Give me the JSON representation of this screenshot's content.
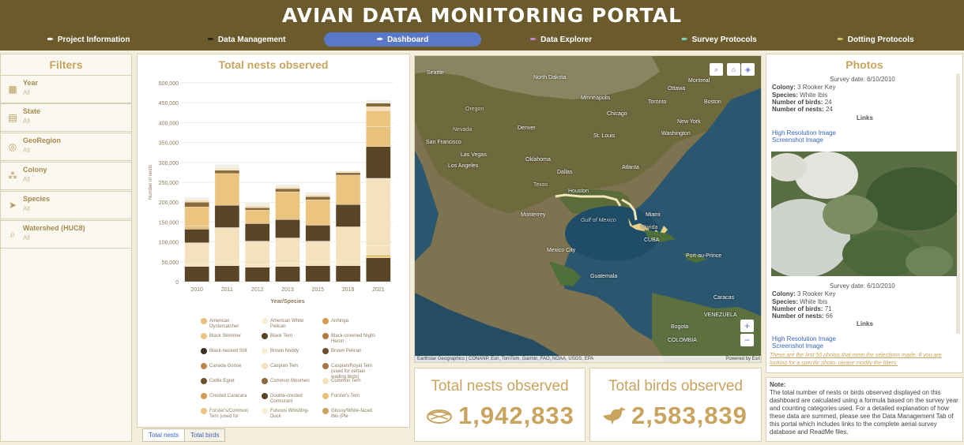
{
  "header": {
    "title": "AVIAN DATA MONITORING PORTAL",
    "nav": [
      {
        "label": "Project Information",
        "icon": "feather-icon"
      },
      {
        "label": "Data Management",
        "icon": "feather-icon"
      },
      {
        "label": "Dashboard",
        "icon": "feather-icon",
        "active": true
      },
      {
        "label": "Data Explorer",
        "icon": "feather-icon"
      },
      {
        "label": "Survey Protocols",
        "icon": "feather-icon"
      },
      {
        "label": "Dotting Protocols",
        "icon": "feather-icon"
      }
    ]
  },
  "filters": {
    "title": "Filters",
    "items": [
      {
        "label": "Year",
        "value": "All",
        "icon": "calendar-icon"
      },
      {
        "label": "State",
        "value": "All",
        "icon": "map-icon"
      },
      {
        "label": "GeoRegion",
        "value": "All",
        "icon": "location-pin-icon"
      },
      {
        "label": "Colony",
        "value": "All",
        "icon": "network-icon"
      },
      {
        "label": "Species",
        "value": "All",
        "icon": "bird-icon"
      },
      {
        "label": "Watershed (HUC8)",
        "value": "All",
        "icon": "search-map-icon"
      }
    ]
  },
  "chart_data": {
    "type": "bar",
    "stacked": true,
    "title": "Total nests observed",
    "xlabel": "Year/Species",
    "ylabel": "Number of nests",
    "ylim": [
      0,
      500000
    ],
    "yticks": [
      "0",
      "50,000",
      "100,000",
      "150,000",
      "200,000",
      "250,000",
      "300,000",
      "350,000",
      "400,000",
      "450,000",
      "500,000"
    ],
    "categories": [
      "2010",
      "2011",
      "2012",
      "2013",
      "2015",
      "2018",
      "2021"
    ],
    "totals": [
      212000,
      295000,
      200000,
      245000,
      225000,
      278000,
      457000
    ],
    "segments": [
      [
        [
          38000,
          "#5a4426"
        ],
        [
          6000,
          "#f3e2bd"
        ],
        [
          54000,
          "#f3e2bd"
        ],
        [
          34000,
          "#5a4426"
        ],
        [
          8000,
          "#e8c27c"
        ],
        [
          48000,
          "#ebc57f"
        ],
        [
          12000,
          "#8a6a3a"
        ],
        [
          6000,
          "#f3e2bd"
        ],
        [
          6000,
          "#f0efe6"
        ]
      ],
      [
        [
          40000,
          "#5a4426"
        ],
        [
          8000,
          "#f3e2bd"
        ],
        [
          88000,
          "#f3e2bd"
        ],
        [
          56000,
          "#5a4426"
        ],
        [
          80000,
          "#ebc57f"
        ],
        [
          8000,
          "#8a6a3a"
        ],
        [
          5000,
          "#f3e2bd"
        ],
        [
          10000,
          "#f0efe6"
        ]
      ],
      [
        [
          36000,
          "#5a4426"
        ],
        [
          6000,
          "#f3e2bd"
        ],
        [
          60000,
          "#f3e2bd"
        ],
        [
          44000,
          "#5a4426"
        ],
        [
          34000,
          "#ebc57f"
        ],
        [
          6000,
          "#8a6a3a"
        ],
        [
          6000,
          "#f3e2bd"
        ],
        [
          8000,
          "#f0efe6"
        ]
      ],
      [
        [
          38000,
          "#5a4426"
        ],
        [
          8000,
          "#f3e2bd"
        ],
        [
          64000,
          "#f3e2bd"
        ],
        [
          46000,
          "#5a4426"
        ],
        [
          70000,
          "#ebc57f"
        ],
        [
          8000,
          "#8a6a3a"
        ],
        [
          5000,
          "#f3e2bd"
        ],
        [
          6000,
          "#f0efe6"
        ]
      ],
      [
        [
          40000,
          "#5a4426"
        ],
        [
          8000,
          "#f3e2bd"
        ],
        [
          54000,
          "#f3e2bd"
        ],
        [
          40000,
          "#5a4426"
        ],
        [
          64000,
          "#ebc57f"
        ],
        [
          8000,
          "#8a6a3a"
        ],
        [
          5000,
          "#f3e2bd"
        ],
        [
          6000,
          "#f0efe6"
        ]
      ],
      [
        [
          40000,
          "#5a4426"
        ],
        [
          8000,
          "#f3e2bd"
        ],
        [
          90000,
          "#f3e2bd"
        ],
        [
          56000,
          "#5a4426"
        ],
        [
          74000,
          "#ebc57f"
        ],
        [
          6000,
          "#8a6a3a"
        ],
        [
          4000,
          "#f3e2bd"
        ]
      ],
      [
        [
          60000,
          "#5a4426"
        ],
        [
          8000,
          "#ebc57f"
        ],
        [
          22000,
          "#f3e2bd"
        ],
        [
          170000,
          "#f3e2bd"
        ],
        [
          80000,
          "#5a4426"
        ],
        [
          50000,
          "#e8c27c"
        ],
        [
          40000,
          "#ebc57f"
        ],
        [
          10000,
          "#f3e2bd"
        ],
        [
          9000,
          "#8a6a3a"
        ],
        [
          8000,
          "#f0efe6"
        ]
      ]
    ],
    "legend": [
      {
        "name": "American Oystercatcher",
        "color": "#e8c27c"
      },
      {
        "name": "American White Pelican",
        "color": "#f7eed8"
      },
      {
        "name": "Anhinga",
        "color": "#d39a52"
      },
      {
        "name": "Black Skimmer",
        "color": "#ebc57f"
      },
      {
        "name": "Black Tern",
        "color": "#5a4426"
      },
      {
        "name": "Black-crowned Night-Heron",
        "color": "#b07a42"
      },
      {
        "name": "Black-necked Stilt",
        "color": "#3f3322"
      },
      {
        "name": "Brown Noddy",
        "color": "#f7eed8"
      },
      {
        "name": "Brown Pelican",
        "color": "#6e4f2c"
      },
      {
        "name": "Canada Goose",
        "color": "#b9884a"
      },
      {
        "name": "Caspian Tern",
        "color": "#f3e2bd"
      },
      {
        "name": "Caspian/Royal Tern (used for certain wading birds)",
        "color": "#a07848"
      },
      {
        "name": "Cattle Egret",
        "color": "#6e4f2c"
      },
      {
        "name": "Common Moorhen",
        "color": "#8a6a3a"
      },
      {
        "name": "Common Tern",
        "color": "#f3e2bd"
      },
      {
        "name": "Crested Caracara",
        "color": "#d39a52"
      },
      {
        "name": "Double-crested Cormorant",
        "color": "#5a4426"
      },
      {
        "name": "Forster's Tern",
        "color": "#e8c27c"
      },
      {
        "name": "Forster's/Common Tern (used for",
        "color": "#ebc57f"
      },
      {
        "name": "Fulvous Whistling-Duck",
        "color": "#f7eed8"
      },
      {
        "name": "Glossy/White-faced Ibis (Ple",
        "color": "#c9a45e"
      }
    ]
  },
  "tabs": [
    {
      "label": "Total nests",
      "active": true
    },
    {
      "label": "Total birds",
      "active": false
    }
  ],
  "map": {
    "attribution": "Earthstar Geographics | CONANP, Esri, TomTom, Garmin, FAO, NOAA, USGS, EPA",
    "powered": "Powered by Esri",
    "cities": [
      {
        "name": "Seattle"
      },
      {
        "name": "Ottawa"
      },
      {
        "name": "Montreal"
      },
      {
        "name": "Minneapolis"
      },
      {
        "name": "North Dakota"
      },
      {
        "name": "Toronto"
      },
      {
        "name": "Boston"
      },
      {
        "name": "Chicago"
      },
      {
        "name": "New York"
      },
      {
        "name": "Denver"
      },
      {
        "name": "Washington"
      },
      {
        "name": "St. Louis"
      },
      {
        "name": "San Francisco"
      },
      {
        "name": "Las Vegas"
      },
      {
        "name": "Los Angeles"
      },
      {
        "name": "Oklahoma"
      },
      {
        "name": "Atlanta"
      },
      {
        "name": "Dallas"
      },
      {
        "name": "Houston"
      },
      {
        "name": "Miami"
      },
      {
        "name": "Monterrey"
      },
      {
        "name": "Gulf of Mexico"
      },
      {
        "name": "CUBA"
      },
      {
        "name": "Port-au-Prince"
      },
      {
        "name": "Mexico City"
      },
      {
        "name": "Guatemala"
      },
      {
        "name": "Caracas"
      },
      {
        "name": "VENEZUELA"
      },
      {
        "name": "COLOMBIA"
      },
      {
        "name": "Bogota"
      },
      {
        "name": "Oregon"
      },
      {
        "name": "Nevada"
      },
      {
        "name": "Texas"
      },
      {
        "name": "Florida"
      }
    ]
  },
  "stats": {
    "nests_title": "Total nests observed",
    "nests_value": "1,942,833",
    "birds_title": "Total birds observed",
    "birds_value": "2,583,839"
  },
  "photos": {
    "title": "Photos",
    "entries": [
      {
        "survey": "Survey date: 6/10/2010",
        "colony": "3 Rooker Key",
        "species": "White Ibis",
        "birds": "24",
        "nests": "24"
      },
      {
        "survey": "Survey date: 6/10/2010",
        "colony": "3 Rooker Key",
        "species": "White Ibis",
        "birds": "71",
        "nests": "66"
      }
    ],
    "labels": {
      "colony": "Colony:",
      "species": "Species:",
      "birds": "Number of birds:",
      "nests": "Number of nests:",
      "links": "Links"
    },
    "hires": "High Resolution Image",
    "screenshot": "Screenshot Image",
    "footer_note": "These are the first 50 photos that meet the selections made. If you are looking for a specific photo, please modify the filters."
  },
  "note": {
    "heading": "Note:",
    "text": "The total number of nests or birds observed displayed on this dashboard are calculated using a formula based on the survey year and counting categories used. For a detailed explanation of how these data are summed, please see the Data Management Tab of this portal which includes links to the complete aerial survey database and ReadMe files."
  }
}
